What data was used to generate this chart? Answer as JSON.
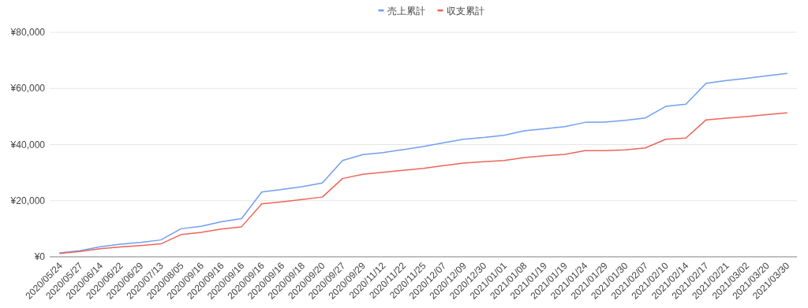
{
  "chart_data": {
    "type": "line",
    "categories": [
      "2020/05/24",
      "2020/05/27",
      "2020/06/14",
      "2020/06/22",
      "2020/06/29",
      "2020/07/13",
      "2020/08/05",
      "2020/09/16",
      "2020/09/16",
      "2020/09/16",
      "2020/09/16",
      "2020/09/16",
      "2020/09/18",
      "2020/09/20",
      "2020/09/27",
      "2020/09/29",
      "2020/11/12",
      "2020/11/22",
      "2020/11/25",
      "2020/12/07",
      "2020/12/09",
      "2020/12/30",
      "2021/01/01",
      "2021/01/08",
      "2021/01/19",
      "2021/01/19",
      "2021/01/24",
      "2021/01/29",
      "2021/01/30",
      "2021/02/07",
      "2021/02/10",
      "2021/02/14",
      "2021/02/17",
      "2021/02/21",
      "2021/03/02",
      "2021/03/20",
      "2021/03/30"
    ],
    "series": [
      {
        "name": "売上累計",
        "color": "#6f9ff2",
        "values": [
          1400,
          2200,
          3600,
          4500,
          5100,
          6000,
          10000,
          10900,
          12500,
          13600,
          23100,
          24000,
          25000,
          26300,
          34300,
          36400,
          37100,
          38200,
          39300,
          40600,
          41900,
          42500,
          43300,
          44900,
          45600,
          46400,
          47900,
          48000,
          48600,
          49500,
          53600,
          54400,
          61800,
          62800,
          63600,
          64500,
          65300
        ]
      },
      {
        "name": "収支累計",
        "color": "#ee6459",
        "values": [
          1200,
          1900,
          2900,
          3500,
          4000,
          4600,
          7900,
          8700,
          9900,
          10700,
          18900,
          19600,
          20400,
          21300,
          27900,
          29400,
          30100,
          30800,
          31500,
          32500,
          33400,
          33900,
          34300,
          35400,
          36000,
          36500,
          37800,
          37800,
          38100,
          38800,
          41900,
          42300,
          48800,
          49400,
          50000,
          50700,
          51300
        ]
      }
    ],
    "ylim": [
      0,
      80000
    ],
    "yticks": [
      {
        "value": 0,
        "label": "¥0"
      },
      {
        "value": 20000,
        "label": "¥20,000"
      },
      {
        "value": 40000,
        "label": "¥40,000"
      },
      {
        "value": 60000,
        "label": "¥60,000"
      },
      {
        "value": 80000,
        "label": "¥80,000"
      }
    ],
    "grid": "y",
    "legend": "top"
  }
}
